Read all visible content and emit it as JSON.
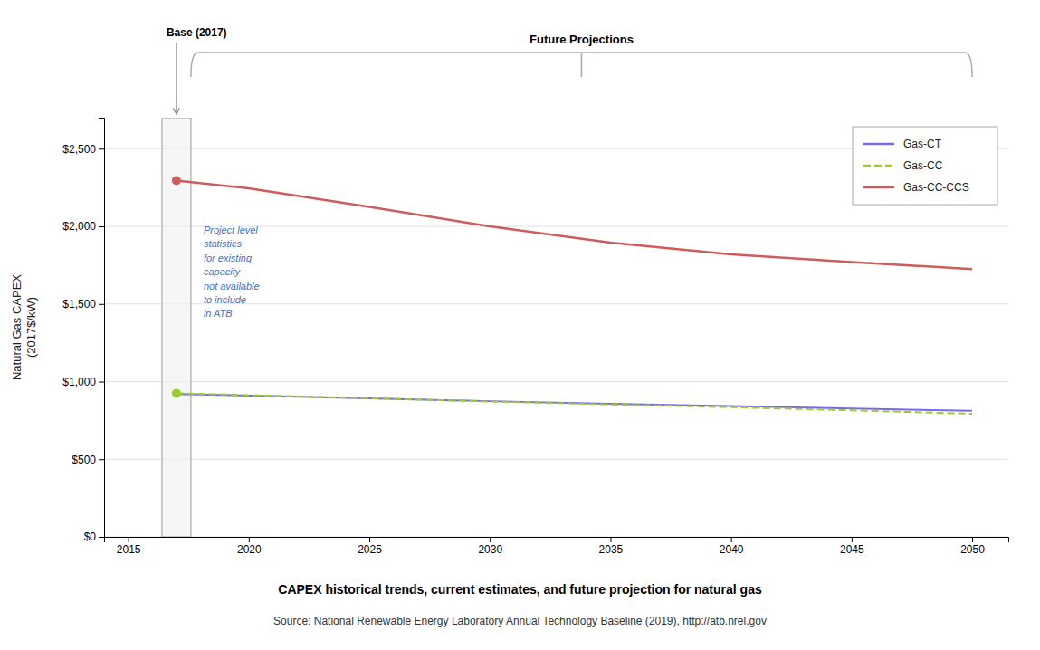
{
  "chart_data": {
    "type": "line",
    "title": "CAPEX historical trends, current estimates, and future projection for natural gas",
    "ylabel": "Natural Gas CAPEX\n(2017$/kW)",
    "annotations": [
      "Base (2017)",
      "Future Projections",
      "Project level\nstatistics\nfor existing\ncapacity\nnot available\nto include\nin ATB",
      "Source: National Renewable Energy Laboratory Annual Technology Baseline (2019), http://atb.nrel.gov"
    ],
    "x": [
      2017,
      2020,
      2025,
      2030,
      2035,
      2040,
      2045,
      2050
    ],
    "series": [
      {
        "name": "Gas-CT",
        "color": "#7B68EE",
        "line_style": "solid",
        "values": [
          920,
          910,
          892,
          874,
          857,
          842,
          826,
          812
        ]
      },
      {
        "name": "Gas-CC",
        "color": "#9ACD32",
        "line_style": "dashed",
        "marker": "circle",
        "values": [
          925,
          913,
          893,
          872,
          853,
          835,
          815,
          793
        ]
      },
      {
        "name": "Gas-CC-CCS",
        "color": "#CD5C5C",
        "line_style": "solid",
        "marker": "circle",
        "values": [
          2295,
          2245,
          2125,
          2000,
          1895,
          1820,
          1770,
          1725
        ]
      }
    ],
    "xlim": [
      2014.0,
      2051.5
    ],
    "xticks": [
      2015,
      2020,
      2025,
      2030,
      2035,
      2040,
      2045,
      2050
    ],
    "ylim": [
      0,
      2700
    ],
    "yticks": [
      {
        "value": 0,
        "label": "$0"
      },
      {
        "value": 500,
        "label": "$500"
      },
      {
        "value": 1000,
        "label": "$1,000"
      },
      {
        "value": 1500,
        "label": "$1,500"
      },
      {
        "value": 2000,
        "label": "$2,000"
      },
      {
        "value": 2500,
        "label": "$2,500"
      }
    ],
    "grid": true,
    "legend": "upper right"
  }
}
